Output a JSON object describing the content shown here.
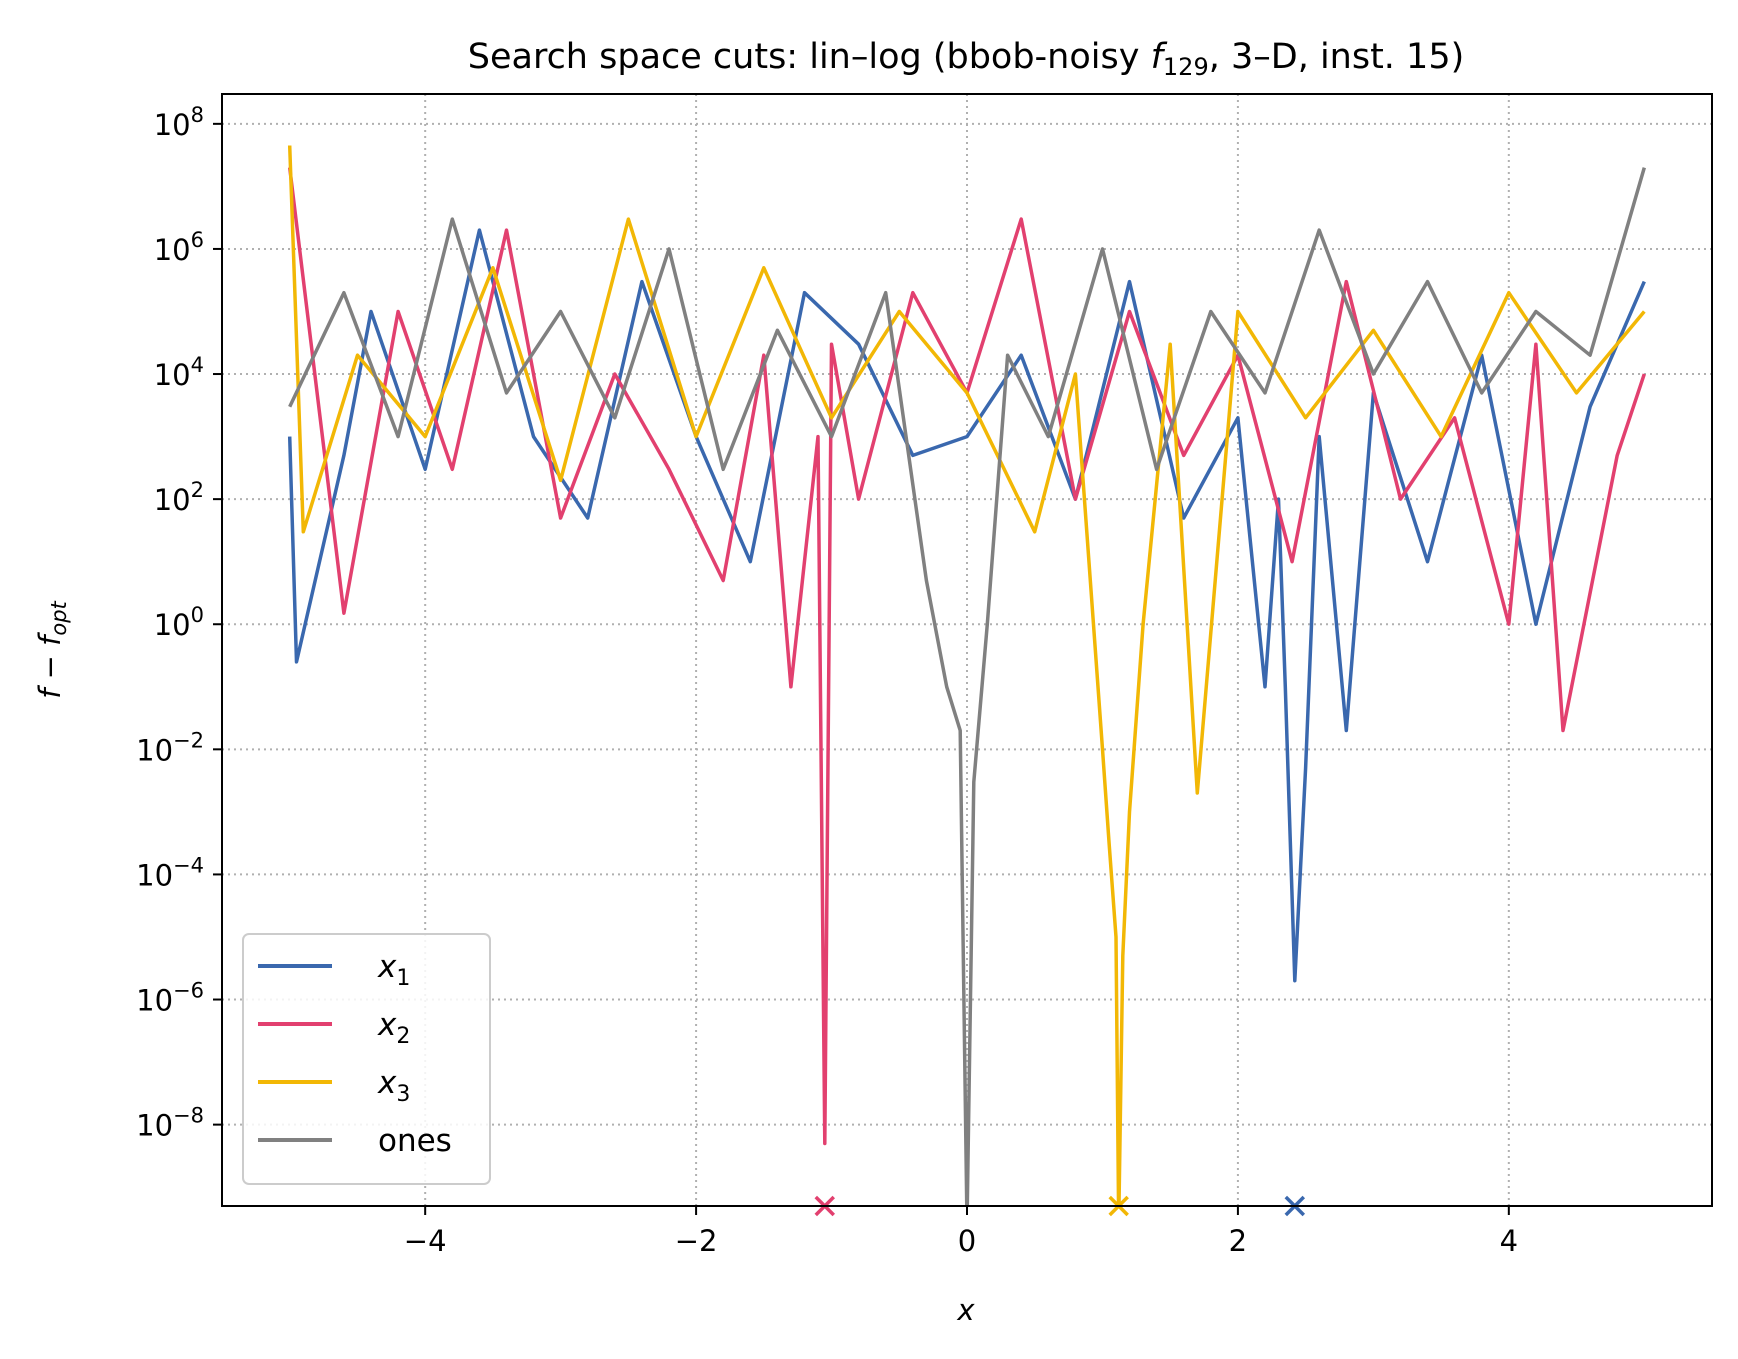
{
  "chart_data": {
    "type": "line",
    "title": "Search space cuts: lin–log (bbob-noisy f129, 3–D, inst. 15)",
    "title_parts": {
      "before": "Search space cuts: lin–log (bbob-noisy ",
      "func": "f",
      "func_sub": "129",
      "after": ", 3–D, inst. 15)"
    },
    "xlabel": "x",
    "ylabel_parts": {
      "f": "f",
      "minus": " − ",
      "f2": "f",
      "sub": "opt"
    },
    "ylabel": "f − f_opt",
    "xlim": [
      -5.5,
      5.5
    ],
    "ylim": [
      5e-10,
      300000000.0
    ],
    "yscale": "log",
    "grid": true,
    "legend_position": "lower-left",
    "x_ticks": [
      -4,
      -2,
      0,
      2,
      4
    ],
    "x_tick_labels": [
      "−4",
      "−2",
      "0",
      "2",
      "4"
    ],
    "y_ticks": [
      1e-08,
      1e-06,
      0.0001,
      0.01,
      1,
      100,
      10000,
      1000000,
      100000000
    ],
    "y_tick_labels": [
      {
        "base": "10",
        "exp": "−8"
      },
      {
        "base": "10",
        "exp": "−6"
      },
      {
        "base": "10",
        "exp": "−4"
      },
      {
        "base": "10",
        "exp": "−2"
      },
      {
        "base": "10",
        "exp": "0"
      },
      {
        "base": "10",
        "exp": "2"
      },
      {
        "base": "10",
        "exp": "4"
      },
      {
        "base": "10",
        "exp": "6"
      },
      {
        "base": "10",
        "exp": "8"
      }
    ],
    "series": [
      {
        "name": "x1",
        "label_main": "x",
        "label_sub": "1",
        "color": "#3a68ae",
        "optimum_x": 2.42,
        "x": [
          -5.0,
          -4.95,
          -4.6,
          -4.4,
          -4.0,
          -3.6,
          -3.2,
          -2.8,
          -2.4,
          -2.0,
          -1.6,
          -1.2,
          -0.8,
          -0.4,
          0.0,
          0.4,
          0.8,
          1.2,
          1.6,
          2.0,
          2.2,
          2.3,
          2.35,
          2.42,
          2.5,
          2.6,
          2.8,
          3.0,
          3.4,
          3.8,
          4.2,
          4.6,
          5.0
        ],
        "y": [
          1000.0,
          0.25,
          500.0,
          100000.0,
          300.0,
          2000000.0,
          1000.0,
          50.0,
          300000.0,
          1000.0,
          10.0,
          200000.0,
          30000.0,
          500.0,
          1000.0,
          20000.0,
          100.0,
          300000.0,
          50.0,
          2000.0,
          0.1,
          100.0,
          0.1,
          2e-06,
          0.005,
          1000.0,
          0.02,
          5000.0,
          10.0,
          20000.0,
          1.0,
          3000.0,
          300000.0
        ]
      },
      {
        "name": "x2",
        "label_main": "x",
        "label_sub": "2",
        "color": "#e2406f",
        "optimum_x": -1.05,
        "x": [
          -5.0,
          -4.6,
          -4.2,
          -3.8,
          -3.4,
          -3.0,
          -2.6,
          -2.2,
          -1.8,
          -1.5,
          -1.3,
          -1.1,
          -1.05,
          -1.0,
          -0.8,
          -0.4,
          0.0,
          0.4,
          0.8,
          1.2,
          1.6,
          2.0,
          2.4,
          2.8,
          3.2,
          3.6,
          4.0,
          4.2,
          4.4,
          4.8,
          5.0
        ],
        "y": [
          20000000.0,
          1.5,
          100000.0,
          300.0,
          2000000.0,
          50.0,
          10000.0,
          300.0,
          5.0,
          20000.0,
          0.1,
          1000.0,
          5e-09,
          30000.0,
          100.0,
          200000.0,
          5000.0,
          3000000.0,
          100.0,
          100000.0,
          500.0,
          20000.0,
          10.0,
          300000.0,
          100.0,
          2000.0,
          1.0,
          30000.0,
          0.02,
          500.0,
          10000.0
        ]
      },
      {
        "name": "x3",
        "label_main": "x",
        "label_sub": "3",
        "color": "#f2b705",
        "optimum_x": 1.12,
        "x": [
          -5.0,
          -4.9,
          -4.5,
          -4.0,
          -3.5,
          -3.0,
          -2.5,
          -2.0,
          -1.5,
          -1.0,
          -0.5,
          0.0,
          0.5,
          0.8,
          1.0,
          1.05,
          1.1,
          1.12,
          1.15,
          1.2,
          1.3,
          1.5,
          1.7,
          2.0,
          2.5,
          3.0,
          3.5,
          4.0,
          4.5,
          5.0
        ],
        "y": [
          45000000.0,
          30.0,
          20000.0,
          1000.0,
          500000.0,
          200.0,
          3000000.0,
          1000.0,
          500000.0,
          2000.0,
          100000.0,
          5000.0,
          30.0,
          10000.0,
          0.01,
          0.0003,
          1e-05,
          1e-10,
          5e-06,
          0.001,
          1.0,
          30000.0,
          0.002,
          100000.0,
          2000.0,
          50000.0,
          1000.0,
          200000.0,
          5000.0,
          100000.0
        ]
      },
      {
        "name": "ones",
        "label_main": "ones",
        "label_sub": "",
        "color": "#808080",
        "optimum_x": 0.0,
        "x": [
          -5.0,
          -4.6,
          -4.2,
          -3.8,
          -3.4,
          -3.0,
          -2.6,
          -2.2,
          -1.8,
          -1.4,
          -1.0,
          -0.6,
          -0.3,
          -0.15,
          -0.05,
          0.0,
          0.05,
          0.15,
          0.3,
          0.6,
          1.0,
          1.4,
          1.8,
          2.2,
          2.6,
          3.0,
          3.4,
          3.8,
          4.2,
          4.6,
          5.0
        ],
        "y": [
          3000.0,
          200000.0,
          1000.0,
          3000000.0,
          5000.0,
          100000.0,
          2000.0,
          1000000.0,
          300.0,
          50000.0,
          1000.0,
          200000.0,
          5.0,
          0.1,
          0.02,
          1e-10,
          0.003,
          1.0,
          20000.0,
          1000.0,
          1000000.0,
          300.0,
          100000.0,
          5000.0,
          2000000.0,
          10000.0,
          300000.0,
          5000.0,
          100000.0,
          20000.0,
          20000000.0
        ]
      }
    ]
  }
}
